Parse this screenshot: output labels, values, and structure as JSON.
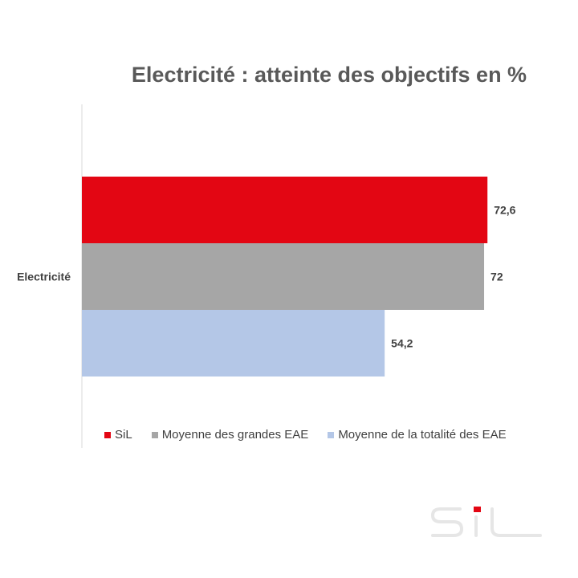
{
  "chart_data": {
    "type": "bar",
    "orientation": "horizontal",
    "title": "Electricité : atteinte des objectifs en %",
    "categories": [
      "Electricité"
    ],
    "series": [
      {
        "name": "SiL",
        "values": [
          72.6
        ],
        "label": "72,6",
        "color": "#e30613"
      },
      {
        "name": "Moyenne des grandes EAE",
        "values": [
          72
        ],
        "label": "72",
        "color": "#a6a6a6"
      },
      {
        "name": "Moyenne de la totalité des EAE",
        "values": [
          54.2
        ],
        "label": "54,2",
        "color": "#b4c7e7"
      }
    ],
    "xlim": [
      0,
      73
    ],
    "grid": false,
    "legend_position": "bottom"
  },
  "logo": {
    "text": "SiL",
    "icon": "sil-logo",
    "color": "#e8e8e8"
  }
}
